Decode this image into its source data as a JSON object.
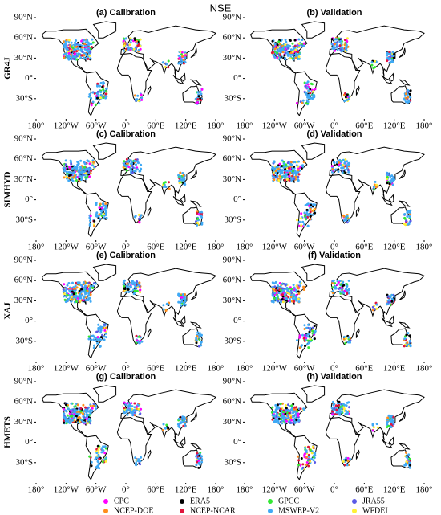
{
  "title": "NSE",
  "row_labels": [
    "GR4J",
    "SIMHYD",
    "XAJ",
    "HMETS"
  ],
  "panels": [
    {
      "title": "(a) Calibration"
    },
    {
      "title": "(b) Validation"
    },
    {
      "title": "(c) Calibration"
    },
    {
      "title": "(d) Validation"
    },
    {
      "title": "(e) Calibration"
    },
    {
      "title": "(f) Validation"
    },
    {
      "title": "(g) Calibration"
    },
    {
      "title": "(h) Validation"
    }
  ],
  "map": {
    "xlim": [
      -180,
      180
    ],
    "ylim": [
      -60,
      90
    ],
    "xticks": [
      {
        "value": -180,
        "label": "180°"
      },
      {
        "value": -120,
        "label": "120°W"
      },
      {
        "value": -60,
        "label": "60°W"
      },
      {
        "value": 0,
        "label": "0°"
      },
      {
        "value": 60,
        "label": "60°E"
      },
      {
        "value": 120,
        "label": "120°E"
      },
      {
        "value": 180,
        "label": "180°"
      }
    ],
    "yticks": [
      {
        "value": 90,
        "label": "90°N"
      },
      {
        "value": 60,
        "label": "60°N"
      },
      {
        "value": 30,
        "label": "30°N"
      },
      {
        "value": 0,
        "label": "0°"
      },
      {
        "value": -30,
        "label": "30°S"
      }
    ]
  },
  "legend": [
    {
      "name": "CPC",
      "color": "#ff00ff"
    },
    {
      "name": "NCEP-DOE",
      "color": "#ff8c1a"
    },
    {
      "name": "ERA5",
      "color": "#000000"
    },
    {
      "name": "NCEP-NCAR",
      "color": "#e0143c"
    },
    {
      "name": "GPCC",
      "color": "#33e833"
    },
    {
      "name": "MSWEP-V2",
      "color": "#3fa9f5"
    },
    {
      "name": "JRA55",
      "color": "#5a5ae6"
    },
    {
      "name": "WFDEI",
      "color": "#fff033"
    }
  ]
}
